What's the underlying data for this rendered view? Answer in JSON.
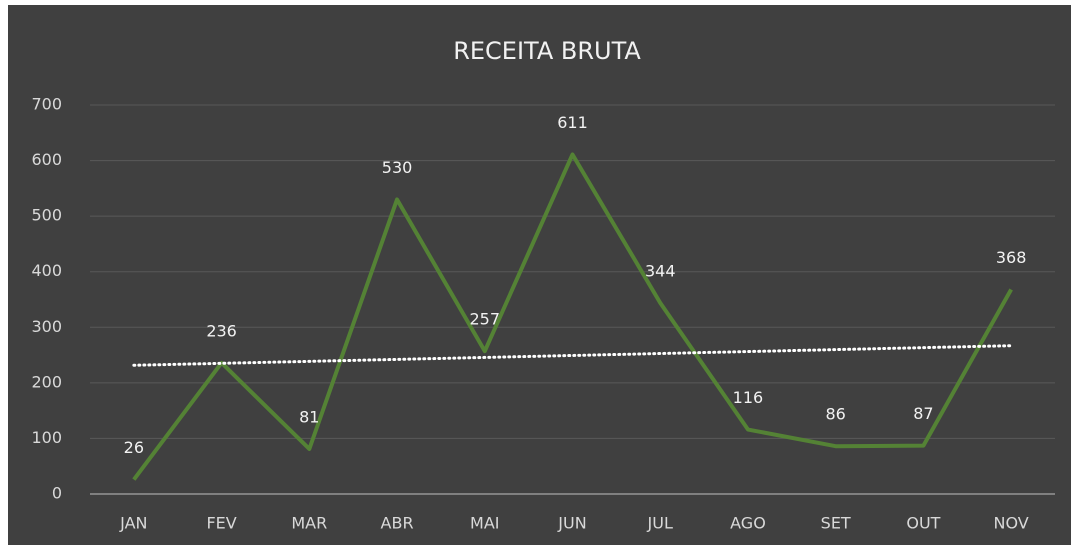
{
  "chart_data": {
    "type": "line",
    "title": "RECEITA BRUTA",
    "categories": [
      "JAN",
      "FEV",
      "MAR",
      "ABR",
      "MAI",
      "JUN",
      "JUL",
      "AGO",
      "SET",
      "OUT",
      "NOV"
    ],
    "series": [
      {
        "name": "RECEITA BRUTA",
        "color": "#548235",
        "values": [
          26,
          236,
          81,
          530,
          257,
          611,
          344,
          116,
          86,
          87,
          368
        ]
      }
    ],
    "ylim": [
      0,
      700
    ],
    "yticks": [
      0,
      100,
      200,
      300,
      400,
      500,
      600,
      700
    ],
    "grid": true,
    "trendline": "linear"
  }
}
